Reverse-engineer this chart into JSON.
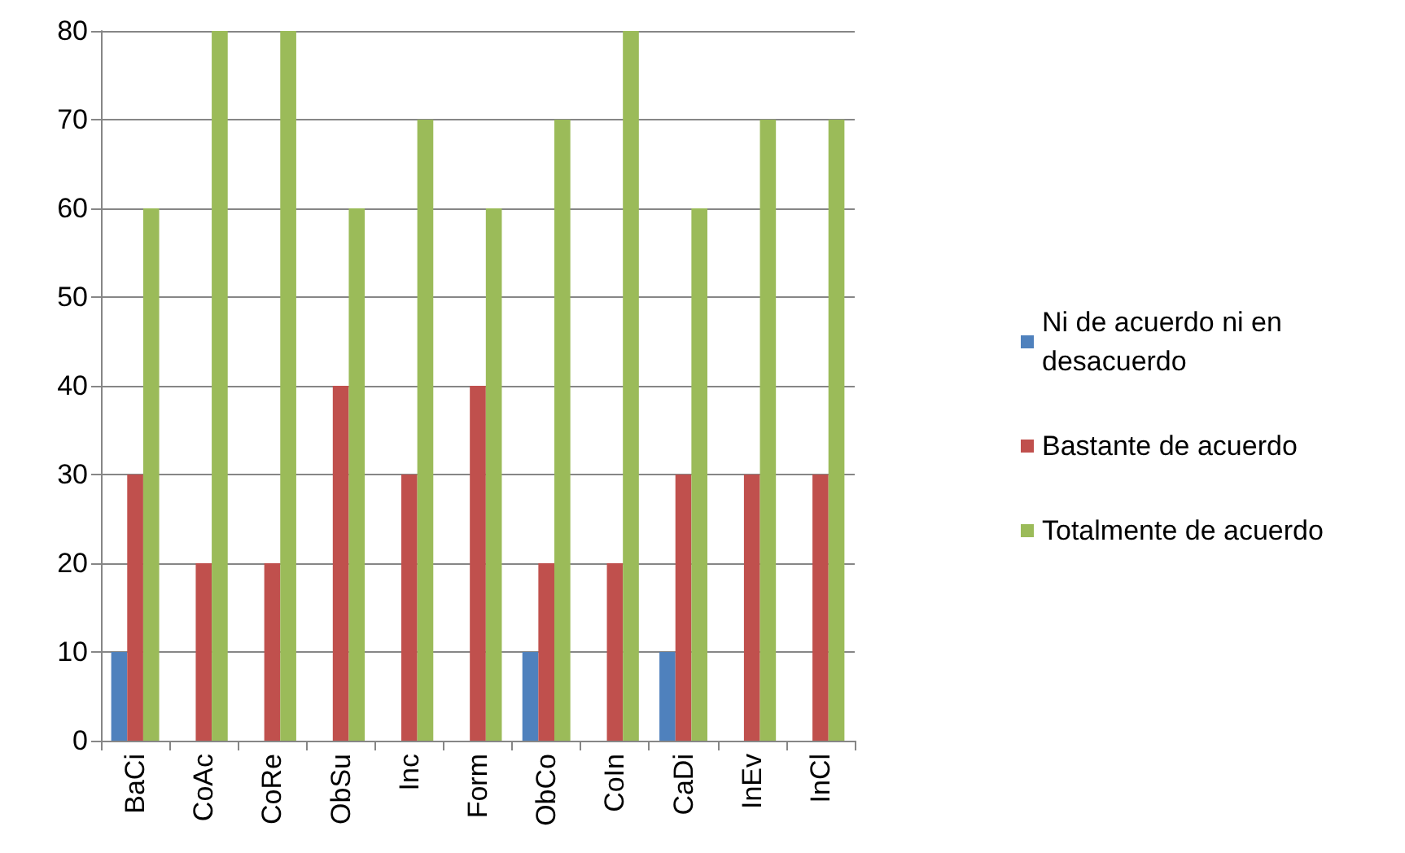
{
  "chart_data": {
    "type": "bar",
    "categories": [
      "BaCi",
      "CoAc",
      "CoRe",
      "ObSu",
      "Inc",
      "Form",
      "ObCo",
      "CoIn",
      "CaDi",
      "InEv",
      "InCl"
    ],
    "series": [
      {
        "name": "Ni de acuerdo ni en desacuerdo",
        "color": "#4f81bd",
        "values": [
          10,
          0,
          0,
          0,
          0,
          0,
          10,
          0,
          10,
          0,
          0
        ]
      },
      {
        "name": "Bastante de acuerdo",
        "color": "#c0504d",
        "values": [
          30,
          20,
          20,
          40,
          30,
          40,
          20,
          20,
          30,
          30,
          30
        ]
      },
      {
        "name": "Totalmente de acuerdo",
        "color": "#9bbb59",
        "values": [
          60,
          80,
          80,
          60,
          70,
          60,
          70,
          80,
          60,
          70,
          70
        ]
      }
    ],
    "ylim": [
      0,
      80
    ],
    "yticks": [
      0,
      10,
      20,
      30,
      40,
      50,
      60,
      70,
      80
    ],
    "grid": "y",
    "legend": "right"
  }
}
